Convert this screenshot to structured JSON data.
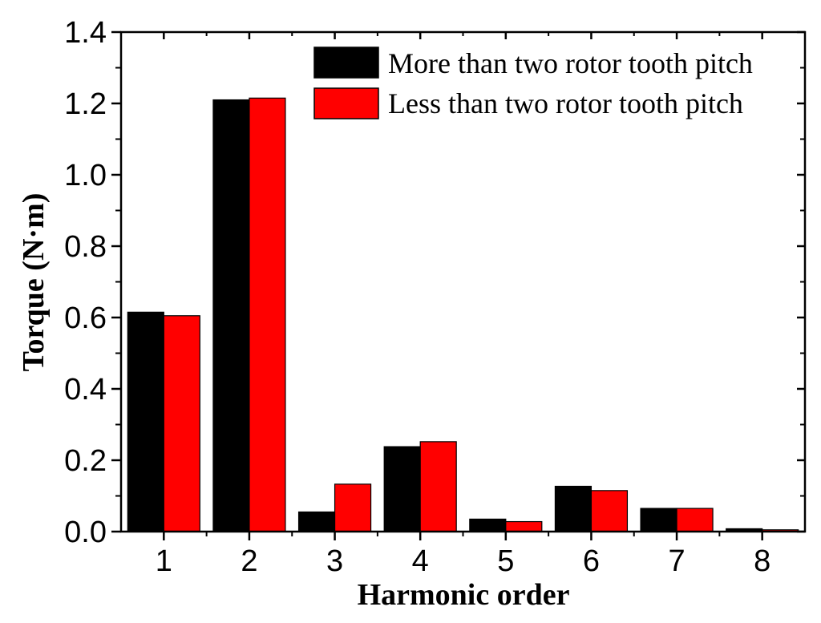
{
  "chart_data": {
    "type": "bar",
    "categories": [
      "1",
      "2",
      "3",
      "4",
      "5",
      "6",
      "7",
      "8"
    ],
    "series": [
      {
        "name": "More than two rotor tooth pitch",
        "color": "#000000",
        "values": [
          0.615,
          1.21,
          0.055,
          0.238,
          0.035,
          0.127,
          0.065,
          0.008
        ]
      },
      {
        "name": "Less than two rotor tooth pitch",
        "color": "#ff0000",
        "values": [
          0.605,
          1.215,
          0.133,
          0.252,
          0.028,
          0.115,
          0.065,
          0.005
        ]
      }
    ],
    "xlabel": "Harmonic order",
    "ylabel": "Torque (N·m)",
    "ylim": [
      0,
      1.4
    ],
    "yticks": [
      "0.0",
      "0.2",
      "0.4",
      "0.6",
      "0.8",
      "1.0",
      "1.2",
      "1.4"
    ],
    "ytick_values": [
      0,
      0.2,
      0.4,
      0.6,
      0.8,
      1.0,
      1.2,
      1.4
    ],
    "grid": false,
    "legend_position": "top-right"
  }
}
